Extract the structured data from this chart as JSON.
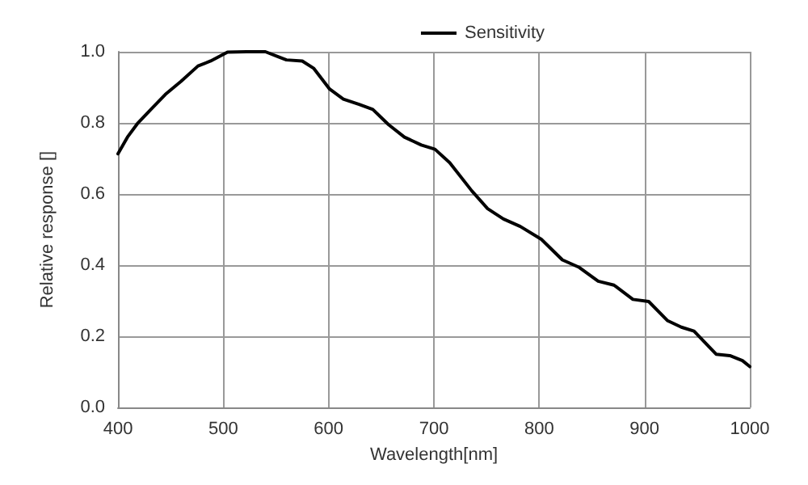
{
  "chart_data": {
    "type": "line",
    "xlabel": "Wavelength[nm]",
    "ylabel": "Relative response []",
    "xlim": [
      400,
      1000
    ],
    "xticks": [
      400,
      500,
      600,
      700,
      800,
      900,
      1000
    ],
    "ylim": [
      0,
      1
    ],
    "yticks": [
      {
        "value": 0,
        "label": "0.0"
      },
      {
        "value": 0.2,
        "label": "0.2"
      },
      {
        "value": 0.4,
        "label": "0.4"
      },
      {
        "value": 0.6,
        "label": "0.6"
      },
      {
        "value": 0.8,
        "label": "0.8"
      },
      {
        "value": 1,
        "label": "1.0"
      }
    ],
    "grid": true,
    "legend": "top right",
    "marker": "none",
    "line_style": "solid",
    "series": [
      {
        "name": "Sensitivity",
        "color": "#000000",
        "x": [
          400,
          409,
          419,
          432,
          445,
          460,
          476,
          488,
          504,
          522,
          540,
          552,
          560,
          575,
          586,
          601,
          614,
          629,
          642,
          657,
          672,
          688,
          701,
          715,
          736,
          751,
          766,
          782,
          802,
          822,
          838,
          856,
          871,
          889,
          904,
          922,
          935,
          947,
          968,
          981,
          993,
          1000
        ],
        "values": [
          0.713,
          0.76,
          0.8,
          0.84,
          0.88,
          0.917,
          0.96,
          0.974,
          0.999,
          1.0,
          1.0,
          0.986,
          0.977,
          0.974,
          0.953,
          0.895,
          0.867,
          0.852,
          0.838,
          0.795,
          0.76,
          0.738,
          0.726,
          0.688,
          0.609,
          0.559,
          0.53,
          0.509,
          0.473,
          0.415,
          0.394,
          0.355,
          0.344,
          0.304,
          0.298,
          0.244,
          0.226,
          0.215,
          0.15,
          0.146,
          0.132,
          0.115
        ]
      }
    ]
  }
}
